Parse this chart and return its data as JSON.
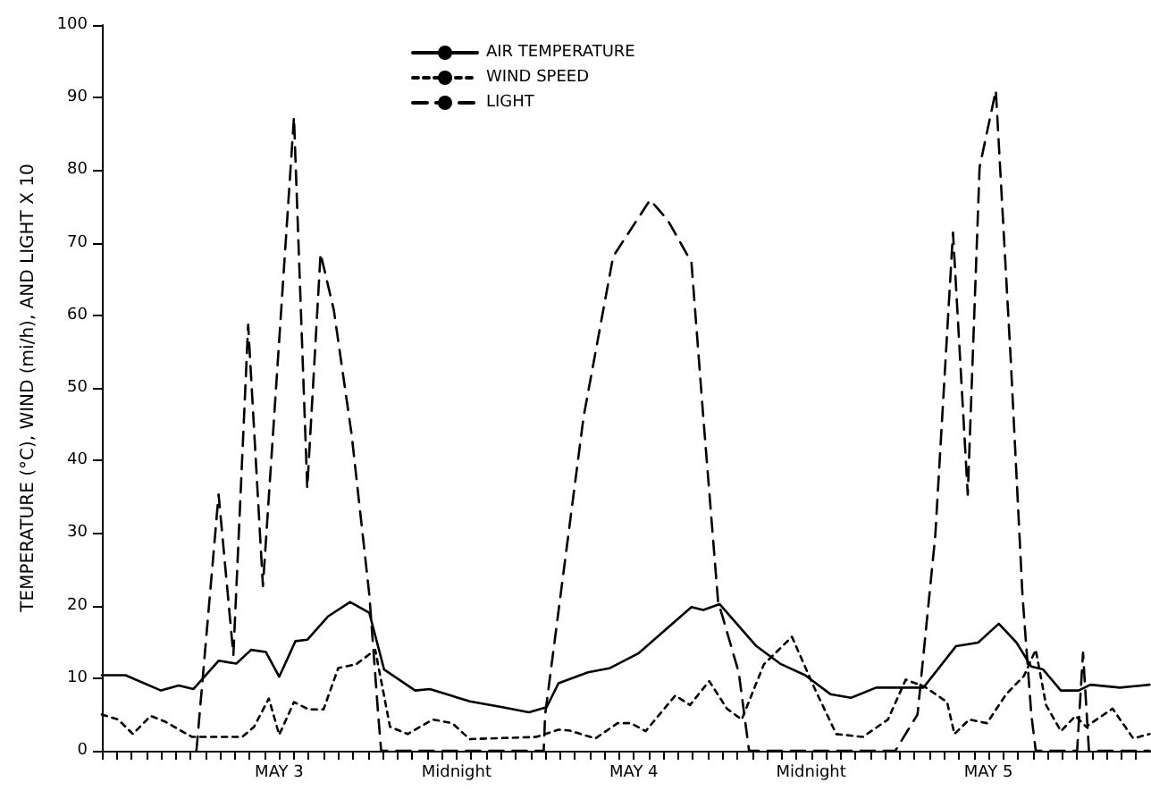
{
  "chart_data": {
    "type": "line",
    "ylabel": "TEMPERATURE (°C), WIND (mi/h), AND LIGHT X 10",
    "xlim": [
      "--05-03T00:00",
      "--05-05T23:00"
    ],
    "xticks": [
      {
        "value": "--05-03T00:00",
        "label": null
      },
      {
        "value": "--05-03T01:00",
        "label": null
      },
      {
        "value": "--05-03T02:00",
        "label": null
      },
      {
        "value": "--05-03T03:00",
        "label": null
      },
      {
        "value": "--05-03T04:00",
        "label": null
      },
      {
        "value": "--05-03T05:00",
        "label": null
      },
      {
        "value": "--05-03T06:00",
        "label": null
      },
      {
        "value": "--05-03T07:00",
        "label": null
      },
      {
        "value": "--05-03T08:00",
        "label": null
      },
      {
        "value": "--05-03T09:00",
        "label": null
      },
      {
        "value": "--05-03T10:00",
        "label": null
      },
      {
        "value": "--05-03T11:00",
        "label": null
      },
      {
        "value": "--05-03T12:00",
        "label": "MAY 3"
      },
      {
        "value": "--05-03T13:00",
        "label": null
      },
      {
        "value": "--05-03T14:00",
        "label": null
      },
      {
        "value": "--05-03T15:00",
        "label": null
      },
      {
        "value": "--05-03T16:00",
        "label": null
      },
      {
        "value": "--05-03T17:00",
        "label": null
      },
      {
        "value": "--05-03T18:00",
        "label": null
      },
      {
        "value": "--05-03T19:00",
        "label": null
      },
      {
        "value": "--05-03T20:00",
        "label": null
      },
      {
        "value": "--05-03T21:00",
        "label": null
      },
      {
        "value": "--05-03T22:00",
        "label": null
      },
      {
        "value": "--05-03T23:00",
        "label": null
      },
      {
        "value": "--05-04T00:00",
        "label": "Midnight"
      },
      {
        "value": "--05-04T01:00",
        "label": null
      },
      {
        "value": "--05-04T02:00",
        "label": null
      },
      {
        "value": "--05-04T03:00",
        "label": null
      },
      {
        "value": "--05-04T04:00",
        "label": null
      },
      {
        "value": "--05-04T05:00",
        "label": null
      },
      {
        "value": "--05-04T06:00",
        "label": null
      },
      {
        "value": "--05-04T07:00",
        "label": null
      },
      {
        "value": "--05-04T08:00",
        "label": null
      },
      {
        "value": "--05-04T09:00",
        "label": null
      },
      {
        "value": "--05-04T10:00",
        "label": null
      },
      {
        "value": "--05-04T11:00",
        "label": null
      },
      {
        "value": "--05-04T12:00",
        "label": "MAY 4"
      },
      {
        "value": "--05-04T13:00",
        "label": null
      },
      {
        "value": "--05-04T14:00",
        "label": null
      },
      {
        "value": "--05-04T15:00",
        "label": null
      },
      {
        "value": "--05-04T16:00",
        "label": null
      },
      {
        "value": "--05-04T17:00",
        "label": null
      },
      {
        "value": "--05-04T18:00",
        "label": null
      },
      {
        "value": "--05-04T19:00",
        "label": null
      },
      {
        "value": "--05-04T20:00",
        "label": null
      },
      {
        "value": "--05-04T21:00",
        "label": null
      },
      {
        "value": "--05-04T22:00",
        "label": null
      },
      {
        "value": "--05-04T23:00",
        "label": null
      },
      {
        "value": "--05-05T00:00",
        "label": "Midnight"
      },
      {
        "value": "--05-05T01:00",
        "label": null
      },
      {
        "value": "--05-05T02:00",
        "label": null
      },
      {
        "value": "--05-05T03:00",
        "label": null
      },
      {
        "value": "--05-05T04:00",
        "label": null
      },
      {
        "value": "--05-05T05:00",
        "label": null
      },
      {
        "value": "--05-05T06:00",
        "label": null
      },
      {
        "value": "--05-05T07:00",
        "label": null
      },
      {
        "value": "--05-05T08:00",
        "label": null
      },
      {
        "value": "--05-05T09:00",
        "label": null
      },
      {
        "value": "--05-05T10:00",
        "label": null
      },
      {
        "value": "--05-05T11:00",
        "label": null
      },
      {
        "value": "--05-05T12:00",
        "label": "MAY 5"
      },
      {
        "value": "--05-05T13:00",
        "label": null
      },
      {
        "value": "--05-05T14:00",
        "label": null
      },
      {
        "value": "--05-05T15:00",
        "label": null
      },
      {
        "value": "--05-05T16:00",
        "label": null
      },
      {
        "value": "--05-05T17:00",
        "label": null
      },
      {
        "value": "--05-05T18:00",
        "label": null
      },
      {
        "value": "--05-05T19:00",
        "label": null
      },
      {
        "value": "--05-05T20:00",
        "label": null
      },
      {
        "value": "--05-05T21:00",
        "label": null
      },
      {
        "value": "--05-05T22:00",
        "label": null
      },
      {
        "value": "--05-05T23:00",
        "label": null
      }
    ],
    "ylim": [
      0,
      100
    ],
    "yticks": [
      0,
      10,
      20,
      30,
      40,
      50,
      60,
      70,
      80,
      90,
      100
    ],
    "legend": "top",
    "marker": "none",
    "grid": false,
    "series": [
      {
        "name": "AIR TEMPERATURE",
        "color": "#000000",
        "line_style": "solid",
        "x": [
          "--05-03T00:00",
          "--05-03T01:36",
          "--05-03T04:00",
          "--05-03T05:12",
          "--05-03T06:12",
          "--05-03T07:54",
          "--05-03T09:06",
          "--05-03T10:06",
          "--05-03T11:06",
          "--05-03T12:00",
          "--05-03T13:06",
          "--05-03T13:54",
          "--05-03T15:18",
          "--05-03T16:48",
          "--05-03T18:06",
          "--05-03T19:06",
          "--05-03T21:12",
          "--05-03T22:12",
          "--05-04T00:54",
          "--05-04T03:06",
          "--05-04T04:54",
          "--05-04T06:06",
          "--05-04T06:54",
          "--05-04T08:54",
          "--05-04T10:24",
          "--05-04T12:18",
          "--05-04T15:54",
          "--05-04T16:42",
          "--05-04T17:48",
          "--05-04T20:18",
          "--05-04T21:54",
          "--05-04T23:36",
          "--05-05T01:18",
          "--05-05T02:42",
          "--05-05T04:24",
          "--05-05T07:36",
          "--05-05T09:48",
          "--05-05T11:18",
          "--05-05T12:42",
          "--05-05T13:54",
          "--05-05T14:54",
          "--05-05T15:42",
          "--05-05T16:54",
          "--05-05T18:06",
          "--05-05T18:54",
          "--05-05T20:54",
          "--05-05T22:54"
        ],
        "values": [
          10.4,
          10.4,
          8.3,
          9,
          8.5,
          12.4,
          12,
          13.9,
          13.6,
          10.2,
          15.1,
          15.3,
          18.5,
          20.5,
          19,
          11.2,
          8.3,
          8.5,
          6.8,
          6,
          5.3,
          6,
          9.3,
          10.8,
          11.4,
          13.4,
          19.8,
          19.4,
          20.2,
          14.4,
          12,
          10.4,
          7.8,
          7.3,
          8.7,
          8.7,
          14.4,
          14.9,
          17.5,
          14.9,
          11.6,
          11.2,
          8.3,
          8.3,
          9.1,
          8.7,
          9.1
        ]
      },
      {
        "name": "WIND SPEED",
        "color": "#000000",
        "line_style": "dotted",
        "x": [
          "--05-03T00:00",
          "--05-03T01:06",
          "--05-03T02:06",
          "--05-03T03:18",
          "--05-03T04:18",
          "--05-03T06:06",
          "--05-03T09:30",
          "--05-03T10:18",
          "--05-03T11:18",
          "--05-03T12:00",
          "--05-03T13:00",
          "--05-03T14:00",
          "--05-03T15:00",
          "--05-03T16:00",
          "--05-03T17:12",
          "--05-03T18:30",
          "--05-03T19:30",
          "--05-03T20:42",
          "--05-03T22:24",
          "--05-03T23:42",
          "--05-04T00:54",
          "--05-04T05:24",
          "--05-04T06:54",
          "--05-04T07:36",
          "--05-04T09:24",
          "--05-04T10:54",
          "--05-04T11:48",
          "--05-04T12:48",
          "--05-04T14:48",
          "--05-04T15:48",
          "--05-04T17:06",
          "--05-04T18:18",
          "--05-04T19:18",
          "--05-04T20:48",
          "--05-04T22:42",
          "--05-05T00:18",
          "--05-05T01:42",
          "--05-05T03:30",
          "--05-05T05:12",
          "--05-05T06:24",
          "--05-05T07:42",
          "--05-05T09:12",
          "--05-05T09:42",
          "--05-05T10:42",
          "--05-05T11:54",
          "--05-05T13:12",
          "--05-05T14:24",
          "--05-05T15:12",
          "--05-05T15:54",
          "--05-05T16:54",
          "--05-05T17:54",
          "--05-05T18:36",
          "--05-05T20:24",
          "--05-05T21:48",
          "--05-05T22:54"
        ],
        "values": [
          5.0,
          4.3,
          2.3,
          4.8,
          4,
          1.9,
          1.9,
          3.3,
          7.2,
          2.2,
          6.7,
          5.7,
          5.7,
          11.4,
          11.9,
          13.9,
          3.3,
          2.3,
          4.3,
          3.8,
          1.6,
          1.9,
          2.9,
          2.8,
          1.7,
          3.8,
          3.8,
          2.7,
          7.6,
          6.3,
          9.6,
          5.8,
          4.3,
          11.9,
          15.7,
          8.3,
          2.3,
          1.9,
          4.3,
          9.8,
          8.8,
          6.7,
          2.3,
          4.3,
          3.8,
          7.8,
          10.3,
          13.9,
          6.3,
          2.7,
          4.8,
          3.3,
          5.8,
          1.7,
          2.3
        ]
      },
      {
        "name": "LIGHT",
        "color": "#000000",
        "line_style": "dashed",
        "x": [
          "--05-03T06:24",
          "--05-03T07:54",
          "--05-03T08:54",
          "--05-03T09:54",
          "--05-03T10:54",
          "--05-03T13:00",
          "--05-03T13:54",
          "--05-03T14:48",
          "--05-03T15:42",
          "--05-03T16:54",
          "--05-03T18:06",
          "--05-03T18:42",
          "--05-03T18:54",
          "--05-04T05:54",
          "--05-04T06:00",
          "--05-04T08:36",
          "--05-04T10:36",
          "--05-04T13:06",
          "--05-04T14:18",
          "--05-04T15:54",
          "--05-04T16:42",
          "--05-04T17:42",
          "--05-04T19:06",
          "--05-04T19:48",
          "--05-05T05:42",
          "--05-05T07:12",
          "--05-05T08:24",
          "--05-05T09:36",
          "--05-05T10:36",
          "--05-05T11:24",
          "--05-05T12:30",
          "--05-05T13:30",
          "--05-05T14:18",
          "--05-05T14:54",
          "--05-05T15:12",
          "--05-05T18:00",
          "--05-05T18:24",
          "--05-05T18:48",
          "--05-05T22:54"
        ],
        "values": [
          0,
          35.3,
          13.2,
          58.7,
          22.7,
          87.3,
          36.2,
          68.5,
          60.7,
          43.6,
          21.5,
          5,
          0,
          0,
          5,
          46,
          68.1,
          75.9,
          73.1,
          67.3,
          46,
          20.6,
          10.8,
          0,
          0,
          5,
          29.6,
          71.4,
          35.3,
          80.4,
          91,
          54.2,
          21.5,
          5,
          0,
          0,
          13.5,
          0,
          0
        ]
      }
    ]
  }
}
